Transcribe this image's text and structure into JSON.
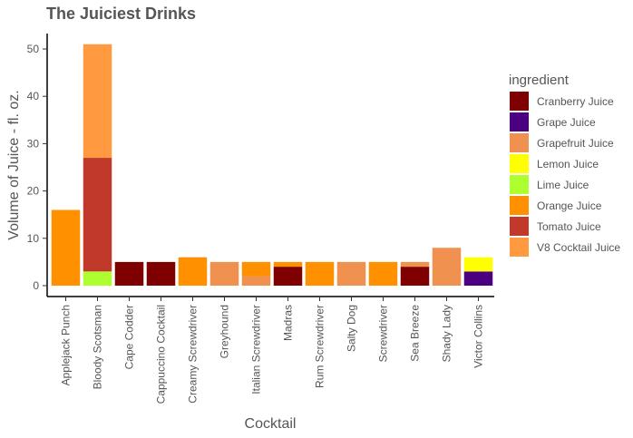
{
  "chart_data": {
    "type": "bar",
    "stacked": true,
    "title": "The Juiciest Drinks",
    "xlabel": "Cocktail",
    "ylabel": "Volume of Juice - fl. oz.",
    "ylim": [
      0,
      53
    ],
    "yticks": [
      0,
      10,
      20,
      30,
      40,
      50
    ],
    "grid": false,
    "legend_title": "ingredient",
    "legend_position": "right",
    "categories": [
      "Applejack Punch",
      "Bloody Scotsman",
      "Cape Codder",
      "Cappuccino Cocktail",
      "Creamy Screwdriver",
      "Greyhound",
      "Italian Screwdriver",
      "Madras",
      "Rum Screwdriver",
      "Salty Dog",
      "Screwdriver",
      "Sea Breeze",
      "Shady Lady",
      "Victor Collins"
    ],
    "series": [
      {
        "name": "Cranberry Juice",
        "color": "#7f0000",
        "values": [
          0,
          0,
          5,
          5,
          0,
          0,
          0,
          4,
          0,
          0,
          0,
          4,
          0,
          0
        ]
      },
      {
        "name": "Grape Juice",
        "color": "#4b0082",
        "values": [
          0,
          0,
          0,
          0,
          0,
          0,
          0,
          0,
          0,
          0,
          0,
          0,
          0,
          3
        ]
      },
      {
        "name": "Grapefruit Juice",
        "color": "#f0914f",
        "values": [
          0,
          0,
          0,
          0,
          0,
          5,
          2,
          0,
          0,
          5,
          0,
          1,
          8,
          0
        ]
      },
      {
        "name": "Lemon Juice",
        "color": "#ffff00",
        "values": [
          0,
          0,
          0,
          0,
          0,
          0,
          0,
          0,
          0,
          0,
          0,
          0,
          0,
          3
        ]
      },
      {
        "name": "Lime Juice",
        "color": "#adff2f",
        "values": [
          0,
          3,
          0,
          0,
          0,
          0,
          0,
          0,
          0,
          0,
          0,
          0,
          0,
          0
        ]
      },
      {
        "name": "Orange Juice",
        "color": "#ff9000",
        "values": [
          16,
          0,
          0,
          0,
          6,
          0,
          3,
          1,
          5,
          0,
          5,
          0,
          0,
          0
        ]
      },
      {
        "name": "Tomato Juice",
        "color": "#c0392b",
        "values": [
          0,
          24,
          0,
          0,
          0,
          0,
          0,
          0,
          0,
          0,
          0,
          0,
          0,
          0
        ]
      },
      {
        "name": "V8 Cocktail Juice",
        "color": "#ff9a40",
        "values": [
          0,
          24,
          0,
          0,
          0,
          0,
          0,
          0,
          0,
          0,
          0,
          0,
          0,
          0
        ]
      }
    ]
  }
}
